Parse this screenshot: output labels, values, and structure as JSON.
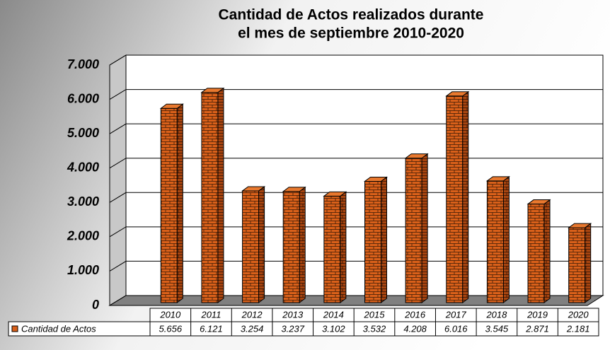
{
  "chart_data": {
    "type": "bar3d",
    "title": [
      "Cantidad de Actos realizados durante",
      "el mes de septiembre 2010-2020"
    ],
    "categories": [
      "2010",
      "2011",
      "2012",
      "2013",
      "2014",
      "2015",
      "2016",
      "2017",
      "2018",
      "2019",
      "2020"
    ],
    "series": [
      {
        "name": "Cantidad de Actos",
        "color": "#d9601a",
        "values": [
          5656,
          6121,
          3254,
          3237,
          3102,
          3532,
          4208,
          6016,
          3545,
          2871,
          2181
        ],
        "value_labels": [
          "5.656",
          "6.121",
          "3.254",
          "3.237",
          "3.102",
          "3.532",
          "4.208",
          "6.016",
          "3.545",
          "2.871",
          "2.181"
        ]
      }
    ],
    "ylim": [
      0,
      7000
    ],
    "yticks": [
      0,
      {
        "value": 1000,
        "label": "1.000"
      },
      {
        "value": 2000,
        "label": "2.000"
      },
      {
        "value": 3000,
        "label": "3.000"
      },
      {
        "value": 4000,
        "label": "4.000"
      },
      {
        "value": 5000,
        "label": "5.000"
      },
      {
        "value": 6000,
        "label": "6.000"
      },
      {
        "value": 7000,
        "label": "7.000"
      }
    ],
    "grid": true
  }
}
